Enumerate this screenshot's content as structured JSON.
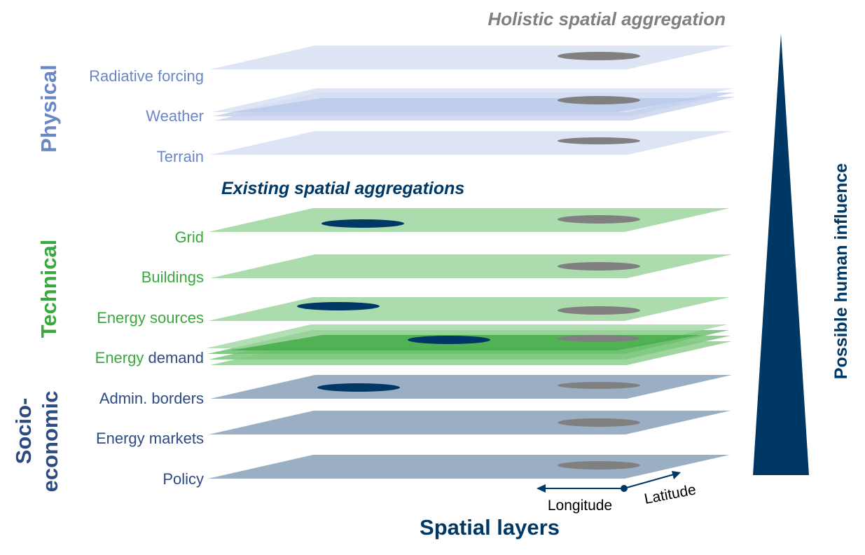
{
  "headings": {
    "holistic": "Holistic spatial aggregation",
    "existing": "Existing spatial aggregations",
    "axis_title": "Spatial layers",
    "influence": "Possible human influence"
  },
  "categories": {
    "physical": "Physical",
    "technical": "Technical",
    "socio_line1": "Socio-",
    "socio_line2": "economic"
  },
  "layers": {
    "radiative_forcing": "Radiative forcing",
    "weather": "Weather",
    "terrain": "Terrain",
    "grid": "Grid",
    "buildings": "Buildings",
    "energy_sources": "Energy sources",
    "energy_demand_part1": "Energy",
    "energy_demand_part2": "demand",
    "admin_borders": "Admin. borders",
    "energy_markets": "Energy markets",
    "policy": "Policy"
  },
  "axes": {
    "longitude": "Longitude",
    "latitude": "Latitude"
  },
  "colors": {
    "physical": "#6b86c6",
    "physical_plane": "#dde4f3",
    "technical": "#3aa83e",
    "technical_plane": "#acdcad",
    "socio": "#2e4a82",
    "socio_plane": "#9aafc4",
    "navy": "#003865",
    "gray": "#808080",
    "holistic": "#7f7f7f"
  }
}
